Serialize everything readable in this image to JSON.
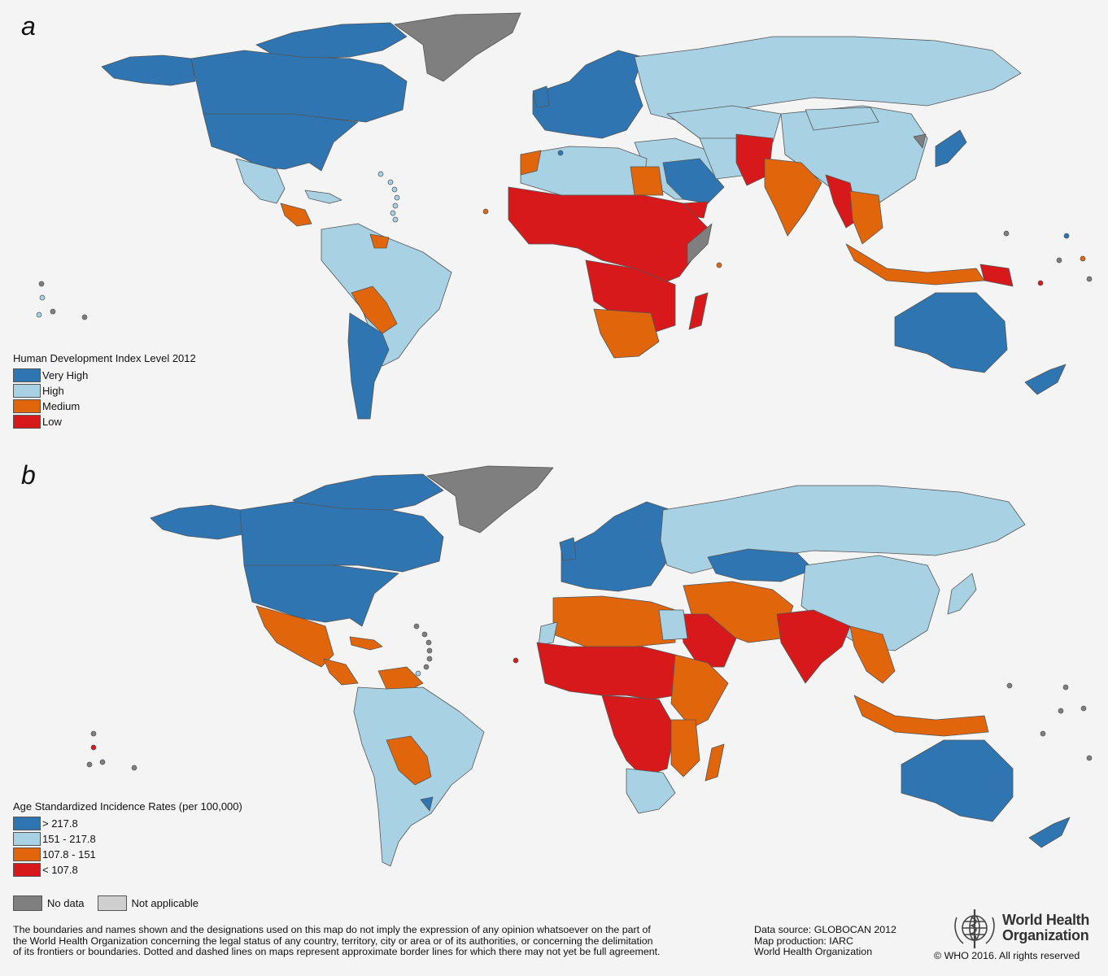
{
  "panels": {
    "a": {
      "letter": "a",
      "legend_title": "Human Development Index Level 2012",
      "legend": [
        {
          "label": "Very High",
          "color": "#2e75b2"
        },
        {
          "label": "High",
          "color": "#a8d2e4"
        },
        {
          "label": "Medium",
          "color": "#e1660b"
        },
        {
          "label": "Low",
          "color": "#d7191c"
        }
      ]
    },
    "b": {
      "letter": "b",
      "legend_title": "Age Standardized Incidence Rates (per 100,000)",
      "legend": [
        {
          "label": "> 217.8",
          "color": "#2e75b2"
        },
        {
          "label": "151 - 217.8",
          "color": "#a8d2e4"
        },
        {
          "label": "107.8 - 151",
          "color": "#e1660b"
        },
        {
          "label": "< 107.8",
          "color": "#d7191c"
        }
      ]
    }
  },
  "extra_legend": [
    {
      "label": "No data",
      "color": "#7f7f7f"
    },
    {
      "label": "Not applicable",
      "color": "#cfcfcf"
    }
  ],
  "footer": {
    "disclaimer_lines": [
      "The boundaries and names shown and the designations used on this map do not imply the expression of any opinion whatsoever on the part of",
      "the World Health Organization concerning the legal status of any country, territory, city or area or of its authorities, or concerning the delimitation",
      "of its frontiers or boundaries. Dotted and dashed lines on maps represent approximate border lines for which there may not yet be full agreement."
    ],
    "source_lines": [
      "Data source: GLOBOCAN 2012",
      "Map production: IARC",
      "World Health Organization"
    ],
    "org_name_line1": "World Health",
    "org_name_line2": "Organization",
    "copyright": "© WHO 2016. All rights reserved"
  }
}
